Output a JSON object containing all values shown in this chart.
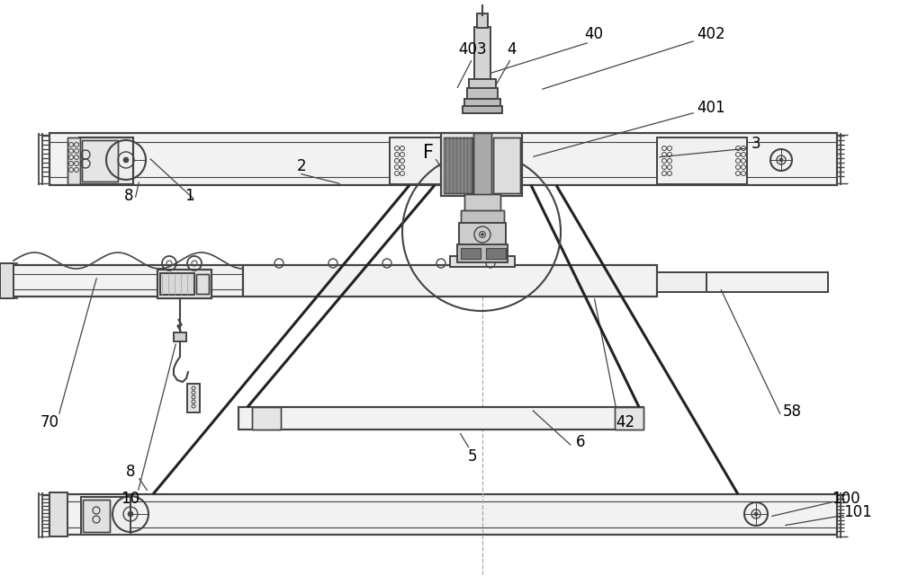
{
  "bg_color": "#ffffff",
  "lc": "#444444",
  "dk": "#222222",
  "gray1": "#cccccc",
  "gray2": "#aaaaaa",
  "gray3": "#888888",
  "gray4": "#666666",
  "figsize": [
    10.0,
    6.41
  ],
  "dpi": 100
}
